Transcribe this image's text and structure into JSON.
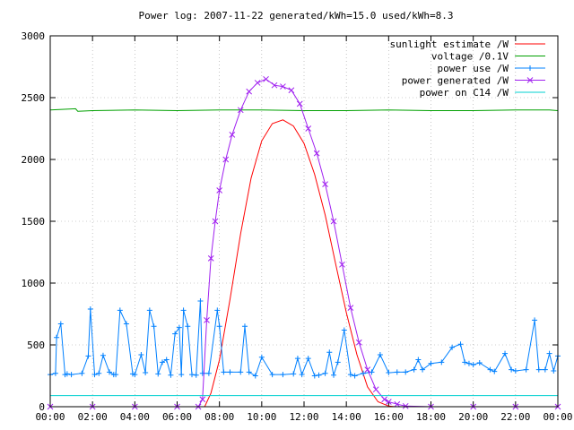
{
  "chart_data": {
    "type": "line",
    "title": "Power log: 2007-11-22 generated/kWh=15.0 used/kWh=8.3",
    "xlabel": "",
    "ylabel": "",
    "x_ticks": [
      "00:00",
      "02:00",
      "04:00",
      "06:00",
      "08:00",
      "10:00",
      "12:00",
      "14:00",
      "16:00",
      "18:00",
      "20:00",
      "22:00",
      "00:00"
    ],
    "y_ticks": [
      "0",
      "500",
      "1000",
      "1500",
      "2000",
      "2500",
      "3000"
    ],
    "xlim_hours": [
      0,
      24
    ],
    "ylim": [
      0,
      3000
    ],
    "grid": true,
    "legend_position": "top-right",
    "series": [
      {
        "name": "sunlight estimate /W",
        "color": "#ff0000",
        "marker": "none",
        "x_hours": [
          7.3,
          7.6,
          8.0,
          8.5,
          9.0,
          9.5,
          10.0,
          10.5,
          11.0,
          11.5,
          12.0,
          12.5,
          13.0,
          13.5,
          14.0,
          14.5,
          15.0,
          15.5,
          16.0,
          16.3
        ],
        "values": [
          0,
          110,
          380,
          870,
          1400,
          1850,
          2150,
          2290,
          2320,
          2270,
          2130,
          1880,
          1550,
          1150,
          760,
          420,
          160,
          40,
          5,
          0
        ]
      },
      {
        "name": "voltage /0.1V",
        "color": "#00a000",
        "marker": "none",
        "x_hours": [
          0,
          1.2,
          1.3,
          2,
          4,
          6,
          8,
          10,
          12,
          14,
          16,
          18,
          20,
          22,
          23.6,
          24
        ],
        "values": [
          2400,
          2410,
          2390,
          2395,
          2400,
          2395,
          2400,
          2400,
          2395,
          2395,
          2400,
          2395,
          2395,
          2400,
          2400,
          2395
        ]
      },
      {
        "name": "power use /W",
        "color": "#0080ff",
        "marker": "plus",
        "x_hours": [
          0.0,
          0.25,
          0.3,
          0.5,
          0.7,
          0.8,
          1.0,
          1.5,
          1.8,
          1.9,
          2.1,
          2.3,
          2.5,
          2.8,
          3.0,
          3.1,
          3.3,
          3.6,
          3.9,
          4.0,
          4.3,
          4.5,
          4.7,
          4.9,
          5.1,
          5.3,
          5.5,
          5.7,
          5.9,
          6.1,
          6.2,
          6.3,
          6.5,
          6.7,
          6.9,
          7.1,
          7.2,
          7.5,
          7.9,
          8.0,
          8.2,
          8.5,
          9.0,
          9.2,
          9.4,
          9.7,
          10.0,
          10.5,
          11.0,
          11.5,
          11.7,
          11.9,
          12.2,
          12.5,
          12.7,
          13.0,
          13.2,
          13.4,
          13.6,
          13.9,
          14.2,
          14.4,
          14.8,
          15.2,
          15.6,
          16.0,
          16.4,
          16.8,
          17.2,
          17.4,
          17.6,
          18.0,
          18.5,
          19.0,
          19.4,
          19.6,
          19.8,
          20.0,
          20.3,
          20.8,
          21.0,
          21.5,
          21.8,
          22.0,
          22.5,
          22.9,
          23.1,
          23.4,
          23.6,
          23.8,
          24.0
        ],
        "values": [
          260,
          270,
          560,
          670,
          260,
          265,
          260,
          270,
          410,
          790,
          260,
          270,
          415,
          280,
          260,
          260,
          780,
          670,
          265,
          260,
          420,
          275,
          780,
          650,
          265,
          360,
          380,
          255,
          590,
          640,
          260,
          780,
          650,
          260,
          255,
          855,
          270,
          270,
          780,
          650,
          280,
          280,
          280,
          650,
          280,
          250,
          400,
          260,
          260,
          265,
          390,
          260,
          390,
          250,
          255,
          270,
          440,
          255,
          360,
          620,
          260,
          250,
          270,
          280,
          420,
          275,
          280,
          280,
          300,
          380,
          300,
          350,
          360,
          480,
          505,
          360,
          350,
          340,
          355,
          300,
          285,
          430,
          300,
          290,
          300,
          700,
          300,
          300,
          430,
          290,
          410
        ]
      },
      {
        "name": "power generated /W",
        "color": "#a020f0",
        "marker": "cross",
        "x_hours": [
          0,
          2,
          4,
          6,
          7.0,
          7.2,
          7.4,
          7.6,
          7.8,
          8.0,
          8.3,
          8.6,
          9.0,
          9.4,
          9.8,
          10.2,
          10.6,
          11.0,
          11.4,
          11.8,
          12.2,
          12.6,
          13.0,
          13.4,
          13.8,
          14.2,
          14.6,
          15.0,
          15.4,
          15.8,
          16.0,
          16.4,
          16.8,
          18,
          20,
          22,
          24
        ],
        "values": [
          0,
          0,
          0,
          0,
          0,
          60,
          700,
          1200,
          1500,
          1750,
          2000,
          2200,
          2400,
          2550,
          2620,
          2650,
          2600,
          2590,
          2560,
          2450,
          2250,
          2050,
          1800,
          1500,
          1150,
          800,
          520,
          300,
          140,
          60,
          40,
          20,
          5,
          0,
          0,
          0,
          0
        ]
      },
      {
        "name": "power on C14 /W",
        "color": "#00d0d0",
        "marker": "none",
        "x_hours": [
          0,
          6,
          12,
          18,
          24
        ],
        "values": [
          90,
          90,
          90,
          90,
          90
        ]
      }
    ]
  }
}
